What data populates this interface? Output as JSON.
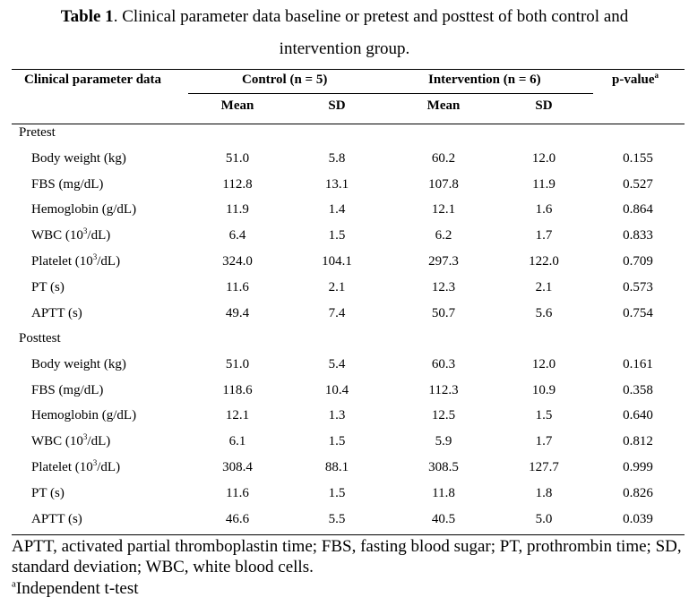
{
  "caption": {
    "label": "Table 1",
    "text_line1": ". Clinical parameter data baseline or pretest and posttest of both control and",
    "text_line2": "intervention group."
  },
  "header": {
    "col1": "Clinical parameter data",
    "control": "Control (n = 5)",
    "intervention": "Intervention (n = 6)",
    "pvalue": "p-value",
    "pvalue_sup": "a",
    "mean": "Mean",
    "sd": "SD"
  },
  "sections": [
    {
      "title": "Pretest",
      "rows": [
        {
          "pre": "Body weight (kg)",
          "sup": "",
          "post": "",
          "c_mean": "51.0",
          "c_sd": "5.8",
          "i_mean": "60.2",
          "i_sd": "12.0",
          "p": "0.155"
        },
        {
          "pre": "FBS (mg/dL)",
          "sup": "",
          "post": "",
          "c_mean": "112.8",
          "c_sd": "13.1",
          "i_mean": "107.8",
          "i_sd": "11.9",
          "p": "0.527"
        },
        {
          "pre": "Hemoglobin (g/dL)",
          "sup": "",
          "post": "",
          "c_mean": "11.9",
          "c_sd": "1.4",
          "i_mean": "12.1",
          "i_sd": "1.6",
          "p": "0.864"
        },
        {
          "pre": "WBC (10",
          "sup": "3",
          "post": "/dL)",
          "c_mean": "6.4",
          "c_sd": "1.5",
          "i_mean": "6.2",
          "i_sd": "1.7",
          "p": "0.833"
        },
        {
          "pre": "Platelet (10",
          "sup": "3",
          "post": "/dL)",
          "c_mean": "324.0",
          "c_sd": "104.1",
          "i_mean": "297.3",
          "i_sd": "122.0",
          "p": "0.709"
        },
        {
          "pre": "PT (s)",
          "sup": "",
          "post": "",
          "c_mean": "11.6",
          "c_sd": "2.1",
          "i_mean": "12.3",
          "i_sd": "2.1",
          "p": "0.573"
        },
        {
          "pre": "APTT (s)",
          "sup": "",
          "post": "",
          "c_mean": "49.4",
          "c_sd": "7.4",
          "i_mean": "50.7",
          "i_sd": "5.6",
          "p": "0.754"
        }
      ]
    },
    {
      "title": "Posttest",
      "rows": [
        {
          "pre": "Body weight (kg)",
          "sup": "",
          "post": "",
          "c_mean": "51.0",
          "c_sd": "5.4",
          "i_mean": "60.3",
          "i_sd": "12.0",
          "p": "0.161"
        },
        {
          "pre": "FBS (mg/dL)",
          "sup": "",
          "post": "",
          "c_mean": "118.6",
          "c_sd": "10.4",
          "i_mean": "112.3",
          "i_sd": "10.9",
          "p": "0.358"
        },
        {
          "pre": "Hemoglobin (g/dL)",
          "sup": "",
          "post": "",
          "c_mean": "12.1",
          "c_sd": "1.3",
          "i_mean": "12.5",
          "i_sd": "1.5",
          "p": "0.640"
        },
        {
          "pre": "WBC (10",
          "sup": "3",
          "post": "/dL)",
          "c_mean": "6.1",
          "c_sd": "1.5",
          "i_mean": "5.9",
          "i_sd": "1.7",
          "p": "0.812"
        },
        {
          "pre": "Platelet (10",
          "sup": "3",
          "post": "/dL)",
          "c_mean": "308.4",
          "c_sd": "88.1",
          "i_mean": "308.5",
          "i_sd": "127.7",
          "p": "0.999"
        },
        {
          "pre": "PT (s)",
          "sup": "",
          "post": "",
          "c_mean": "11.6",
          "c_sd": "1.5",
          "i_mean": "11.8",
          "i_sd": "1.8",
          "p": "0.826"
        },
        {
          "pre": "APTT (s)",
          "sup": "",
          "post": "",
          "c_mean": "46.6",
          "c_sd": "5.5",
          "i_mean": "40.5",
          "i_sd": "5.0",
          "p": "0.039"
        }
      ]
    }
  ],
  "footnote": {
    "abbreviations": "APTT, activated partial thromboplastin time; FBS, fasting blood sugar; PT, prothrombin time; SD, standard deviation; WBC, white blood cells.",
    "test_sup": "a",
    "test": "Independent t-test"
  }
}
